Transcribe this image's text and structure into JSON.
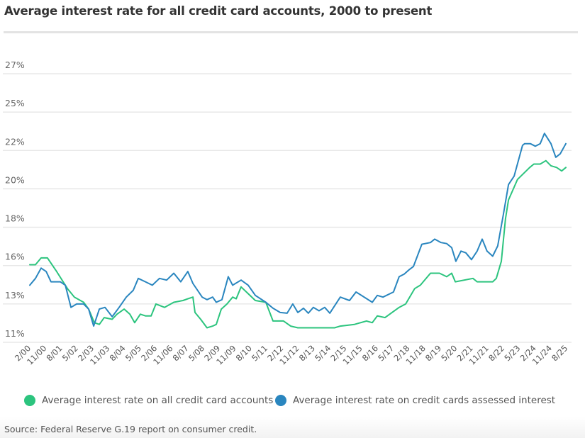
{
  "chart_data": {
    "type": "line",
    "title": "Average interest rate for all credit card accounts, 2000 to present",
    "xlabel": "",
    "ylabel": "",
    "ylim": [
      11.25,
      27
    ],
    "y_ticks": [
      11.25,
      13.5,
      15.75,
      18,
      20.25,
      22.5,
      24.75,
      27
    ],
    "y_tick_labels": [
      "11%",
      "13%",
      "16%",
      "18%",
      "20%",
      "22%",
      "25%",
      "27%"
    ],
    "x_tick_labels": [
      "2/00",
      "11/00",
      "8/01",
      "5/02",
      "2/03",
      "11/03",
      "8/04",
      "5/05",
      "2/06",
      "11/06",
      "8/07",
      "5/08",
      "2/09",
      "11/09",
      "8/10",
      "5/11",
      "2/12",
      "11/12",
      "8/13",
      "5/14",
      "2/15",
      "11/15",
      "8/16",
      "5/17",
      "2/18",
      "11/18",
      "8/19",
      "5/20",
      "2/21",
      "11/21",
      "8/22",
      "5/23",
      "2/24",
      "11/24",
      "8/25"
    ],
    "grid": true,
    "legend_placement": "bottom",
    "series": [
      {
        "name": "Average interest rate on all credit card accounts",
        "color": "#2cc47e",
        "points": [
          [
            2000.08,
            15.8
          ],
          [
            2000.35,
            15.8
          ],
          [
            2000.62,
            16.2
          ],
          [
            2000.92,
            16.2
          ],
          [
            2001.36,
            15.4
          ],
          [
            2001.87,
            14.4
          ],
          [
            2002.2,
            13.9
          ],
          [
            2002.64,
            13.6
          ],
          [
            2002.88,
            13.2
          ],
          [
            2003.15,
            12.4
          ],
          [
            2003.39,
            12.3
          ],
          [
            2003.62,
            12.7
          ],
          [
            2004.0,
            12.6
          ],
          [
            2004.23,
            12.9
          ],
          [
            2004.57,
            13.2
          ],
          [
            2004.84,
            12.9
          ],
          [
            2005.07,
            12.4
          ],
          [
            2005.34,
            12.9
          ],
          [
            2005.58,
            12.8
          ],
          [
            2005.85,
            12.8
          ],
          [
            2006.08,
            13.5
          ],
          [
            2006.49,
            13.3
          ],
          [
            2006.93,
            13.6
          ],
          [
            2007.37,
            13.7
          ],
          [
            2007.6,
            13.8
          ],
          [
            2007.84,
            13.9
          ],
          [
            2007.94,
            13.0
          ],
          [
            2008.21,
            12.6
          ],
          [
            2008.51,
            12.1
          ],
          [
            2008.78,
            12.2
          ],
          [
            2008.95,
            12.3
          ],
          [
            2009.19,
            13.2
          ],
          [
            2009.46,
            13.5
          ],
          [
            2009.73,
            13.9
          ],
          [
            2009.9,
            13.8
          ],
          [
            2010.13,
            14.5
          ],
          [
            2010.47,
            14.1
          ],
          [
            2010.81,
            13.7
          ],
          [
            2011.31,
            13.6
          ],
          [
            2011.65,
            12.5
          ],
          [
            2012.15,
            12.5
          ],
          [
            2012.49,
            12.2
          ],
          [
            2012.83,
            12.1
          ],
          [
            2013.84,
            12.1
          ],
          [
            2014.58,
            12.1
          ],
          [
            2014.85,
            12.2
          ],
          [
            2015.53,
            12.3
          ],
          [
            2016.1,
            12.5
          ],
          [
            2016.37,
            12.4
          ],
          [
            2016.61,
            12.8
          ],
          [
            2016.98,
            12.7
          ],
          [
            2017.65,
            13.3
          ],
          [
            2017.96,
            13.5
          ],
          [
            2018.39,
            14.4
          ],
          [
            2018.66,
            14.6
          ],
          [
            2019.14,
            15.3
          ],
          [
            2019.57,
            15.3
          ],
          [
            2019.91,
            15.1
          ],
          [
            2020.15,
            15.3
          ],
          [
            2020.32,
            14.8
          ],
          [
            2021.16,
            15.0
          ],
          [
            2021.36,
            14.8
          ],
          [
            2022.1,
            14.8
          ],
          [
            2022.27,
            15.0
          ],
          [
            2022.51,
            16.0
          ],
          [
            2022.71,
            18.5
          ],
          [
            2022.85,
            19.6
          ],
          [
            2023.28,
            20.8
          ],
          [
            2023.86,
            21.5
          ],
          [
            2024.06,
            21.7
          ],
          [
            2024.36,
            21.7
          ],
          [
            2024.63,
            21.9
          ],
          [
            2024.87,
            21.6
          ],
          [
            2025.14,
            21.5
          ],
          [
            2025.38,
            21.3
          ],
          [
            2025.58,
            21.5
          ]
        ]
      },
      {
        "name": "Average interest rate on credit cards assessed interest",
        "color": "#2a86bf",
        "points": [
          [
            2000.08,
            14.6
          ],
          [
            2000.35,
            15.0
          ],
          [
            2000.62,
            15.6
          ],
          [
            2000.86,
            15.4
          ],
          [
            2001.09,
            14.8
          ],
          [
            2001.53,
            14.8
          ],
          [
            2001.77,
            14.6
          ],
          [
            2002.04,
            13.3
          ],
          [
            2002.31,
            13.5
          ],
          [
            2002.64,
            13.5
          ],
          [
            2002.88,
            13.2
          ],
          [
            2003.12,
            12.2
          ],
          [
            2003.39,
            13.2
          ],
          [
            2003.66,
            13.3
          ],
          [
            2004.0,
            12.75
          ],
          [
            2004.33,
            13.3
          ],
          [
            2004.67,
            13.9
          ],
          [
            2005.0,
            14.3
          ],
          [
            2005.24,
            15.0
          ],
          [
            2005.58,
            14.8
          ],
          [
            2005.91,
            14.6
          ],
          [
            2006.25,
            15.0
          ],
          [
            2006.59,
            14.9
          ],
          [
            2006.93,
            15.3
          ],
          [
            2007.26,
            14.8
          ],
          [
            2007.6,
            15.4
          ],
          [
            2007.84,
            14.7
          ],
          [
            2008.28,
            13.9
          ],
          [
            2008.51,
            13.75
          ],
          [
            2008.78,
            13.9
          ],
          [
            2008.95,
            13.6
          ],
          [
            2009.22,
            13.75
          ],
          [
            2009.52,
            15.1
          ],
          [
            2009.73,
            14.6
          ],
          [
            2010.13,
            14.9
          ],
          [
            2010.47,
            14.6
          ],
          [
            2010.81,
            14.0
          ],
          [
            2011.31,
            13.6
          ],
          [
            2011.65,
            13.25
          ],
          [
            2011.99,
            13.0
          ],
          [
            2012.32,
            12.96
          ],
          [
            2012.59,
            13.5
          ],
          [
            2012.83,
            13.0
          ],
          [
            2013.1,
            13.25
          ],
          [
            2013.33,
            12.96
          ],
          [
            2013.57,
            13.3
          ],
          [
            2013.84,
            13.1
          ],
          [
            2014.11,
            13.3
          ],
          [
            2014.35,
            12.96
          ],
          [
            2014.85,
            13.9
          ],
          [
            2015.29,
            13.7
          ],
          [
            2015.6,
            14.2
          ],
          [
            2016.37,
            13.6
          ],
          [
            2016.61,
            14.0
          ],
          [
            2016.88,
            13.9
          ],
          [
            2017.38,
            14.2
          ],
          [
            2017.65,
            15.1
          ],
          [
            2017.89,
            15.25
          ],
          [
            2018.12,
            15.5
          ],
          [
            2018.33,
            15.7
          ],
          [
            2018.73,
            17.0
          ],
          [
            2019.14,
            17.1
          ],
          [
            2019.34,
            17.3
          ],
          [
            2019.64,
            17.1
          ],
          [
            2019.91,
            17.04
          ],
          [
            2020.15,
            16.8
          ],
          [
            2020.35,
            16.0
          ],
          [
            2020.59,
            16.6
          ],
          [
            2020.82,
            16.5
          ],
          [
            2021.09,
            16.1
          ],
          [
            2021.36,
            16.6
          ],
          [
            2021.6,
            17.3
          ],
          [
            2021.83,
            16.6
          ],
          [
            2022.1,
            16.3
          ],
          [
            2022.34,
            16.9
          ],
          [
            2022.61,
            18.75
          ],
          [
            2022.85,
            20.5
          ],
          [
            2023.12,
            21.0
          ],
          [
            2023.52,
            22.8
          ],
          [
            2023.62,
            22.9
          ],
          [
            2023.89,
            22.9
          ],
          [
            2024.13,
            22.75
          ],
          [
            2024.36,
            22.9
          ],
          [
            2024.56,
            23.5
          ],
          [
            2024.87,
            22.9
          ],
          [
            2025.1,
            22.1
          ],
          [
            2025.31,
            22.3
          ],
          [
            2025.58,
            22.9
          ]
        ]
      }
    ]
  },
  "source": "Source: Federal Reserve G.19 report on consumer credit."
}
